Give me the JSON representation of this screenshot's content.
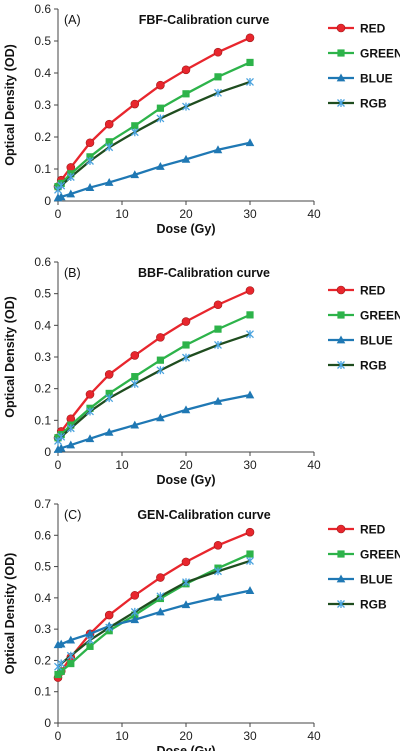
{
  "chart_data": [
    {
      "type": "line",
      "panel_label": "(A)",
      "title": "FBF-Calibration curve",
      "xlabel": "Dose (Gy)",
      "ylabel": "Optical Density (OD)",
      "xlim": [
        0,
        40
      ],
      "ylim": [
        0,
        0.6
      ],
      "xticks": [
        0,
        10,
        20,
        30,
        40
      ],
      "yticks": [
        0,
        0.1,
        0.2,
        0.3,
        0.4,
        0.5,
        0.6
      ],
      "grid": false,
      "legend": "right",
      "series": [
        {
          "name": "RED",
          "color": "#e8262d",
          "marker": "circle",
          "x": [
            0,
            0.5,
            2,
            5,
            8,
            12,
            16,
            20,
            25,
            30
          ],
          "y": [
            0.045,
            0.065,
            0.105,
            0.182,
            0.24,
            0.303,
            0.362,
            0.41,
            0.465,
            0.51
          ]
        },
        {
          "name": "GREEN",
          "color": "#2db34a",
          "marker": "square",
          "x": [
            0,
            0.5,
            2,
            5,
            8,
            12,
            16,
            20,
            25,
            30
          ],
          "y": [
            0.045,
            0.055,
            0.085,
            0.138,
            0.185,
            0.235,
            0.29,
            0.335,
            0.388,
            0.433
          ]
        },
        {
          "name": "BLUE",
          "color": "#1f78b4",
          "marker": "triangle",
          "x": [
            0,
            0.5,
            2,
            5,
            8,
            12,
            16,
            20,
            25,
            30
          ],
          "y": [
            0.01,
            0.013,
            0.022,
            0.042,
            0.058,
            0.082,
            0.108,
            0.13,
            0.16,
            0.182
          ]
        },
        {
          "name": "RGB",
          "color": "#1f4d1f",
          "marker": "x",
          "marker_color": "#4aa3df",
          "x": [
            0,
            0.5,
            2,
            5,
            8,
            12,
            16,
            20,
            25,
            30
          ],
          "y": [
            0.035,
            0.048,
            0.075,
            0.125,
            0.168,
            0.215,
            0.258,
            0.295,
            0.338,
            0.372
          ]
        }
      ]
    },
    {
      "type": "line",
      "panel_label": "(B)",
      "title": "BBF-Calibration curve",
      "xlabel": "Dose (Gy)",
      "ylabel": "Optical Density (OD)",
      "xlim": [
        0,
        40
      ],
      "ylim": [
        0,
        0.6
      ],
      "xticks": [
        0,
        10,
        20,
        30,
        40
      ],
      "yticks": [
        0,
        0.1,
        0.2,
        0.3,
        0.4,
        0.5,
        0.6
      ],
      "grid": false,
      "legend": "right",
      "series": [
        {
          "name": "RED",
          "color": "#e8262d",
          "marker": "circle",
          "x": [
            0,
            0.5,
            2,
            5,
            8,
            12,
            16,
            20,
            25,
            30
          ],
          "y": [
            0.045,
            0.065,
            0.105,
            0.182,
            0.245,
            0.305,
            0.362,
            0.412,
            0.465,
            0.51
          ]
        },
        {
          "name": "GREEN",
          "color": "#2db34a",
          "marker": "square",
          "x": [
            0,
            0.5,
            2,
            5,
            8,
            12,
            16,
            20,
            25,
            30
          ],
          "y": [
            0.045,
            0.055,
            0.085,
            0.138,
            0.185,
            0.238,
            0.29,
            0.338,
            0.388,
            0.433
          ]
        },
        {
          "name": "BLUE",
          "color": "#1f78b4",
          "marker": "triangle",
          "x": [
            0,
            0.5,
            2,
            5,
            8,
            12,
            16,
            20,
            25,
            30
          ],
          "y": [
            0.008,
            0.012,
            0.022,
            0.042,
            0.062,
            0.085,
            0.108,
            0.133,
            0.16,
            0.18
          ]
        },
        {
          "name": "RGB",
          "color": "#1f4d1f",
          "marker": "x",
          "marker_color": "#4aa3df",
          "x": [
            0,
            0.5,
            2,
            5,
            8,
            12,
            16,
            20,
            25,
            30
          ],
          "y": [
            0.035,
            0.048,
            0.075,
            0.128,
            0.17,
            0.215,
            0.258,
            0.298,
            0.338,
            0.372
          ]
        }
      ]
    },
    {
      "type": "line",
      "panel_label": "(C)",
      "title": "GEN-Calibration curve",
      "xlabel": "Dose (Gy)",
      "ylabel": "Optical Density (OD)",
      "xlim": [
        0,
        40
      ],
      "ylim": [
        0,
        0.7
      ],
      "xticks": [
        0,
        10,
        20,
        30,
        40
      ],
      "yticks": [
        0,
        0.1,
        0.2,
        0.3,
        0.4,
        0.5,
        0.6,
        0.7
      ],
      "grid": false,
      "legend": "right",
      "series": [
        {
          "name": "RED",
          "color": "#e8262d",
          "marker": "circle",
          "x": [
            0,
            0.5,
            2,
            5,
            8,
            12,
            16,
            20,
            25,
            30
          ],
          "y": [
            0.145,
            0.165,
            0.21,
            0.285,
            0.345,
            0.408,
            0.465,
            0.515,
            0.568,
            0.61
          ]
        },
        {
          "name": "GREEN",
          "color": "#2db34a",
          "marker": "square",
          "x": [
            0,
            0.5,
            2,
            5,
            8,
            12,
            16,
            20,
            25,
            30
          ],
          "y": [
            0.155,
            0.165,
            0.19,
            0.245,
            0.295,
            0.345,
            0.398,
            0.445,
            0.495,
            0.54
          ]
        },
        {
          "name": "BLUE",
          "color": "#1f78b4",
          "marker": "triangle",
          "x": [
            0,
            0.5,
            2,
            5,
            8,
            12,
            16,
            20,
            25,
            30
          ],
          "y": [
            0.25,
            0.252,
            0.265,
            0.285,
            0.31,
            0.33,
            0.355,
            0.378,
            0.402,
            0.423
          ]
        },
        {
          "name": "RGB",
          "color": "#1f4d1f",
          "marker": "x",
          "marker_color": "#4aa3df",
          "x": [
            0,
            0.5,
            2,
            5,
            8,
            12,
            16,
            20,
            25,
            30
          ],
          "y": [
            0.18,
            0.19,
            0.215,
            0.265,
            0.305,
            0.355,
            0.405,
            0.45,
            0.485,
            0.518
          ]
        }
      ]
    }
  ]
}
